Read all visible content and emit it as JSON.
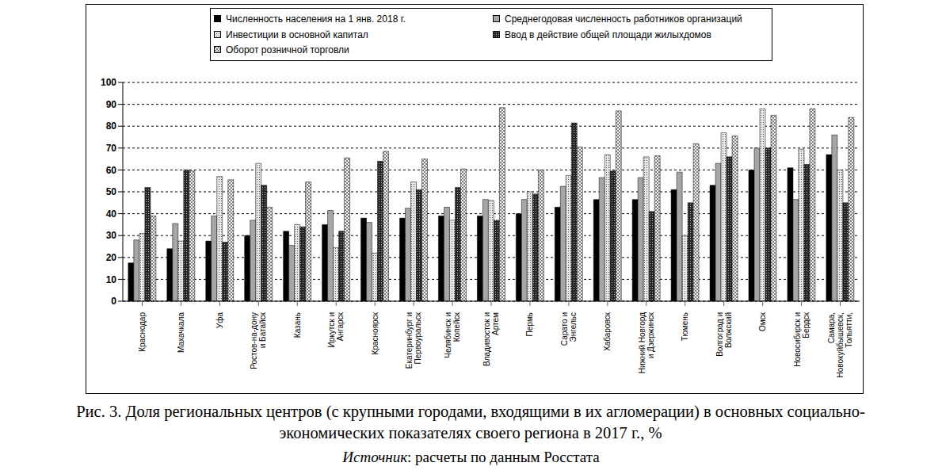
{
  "chart_data": {
    "type": "bar",
    "title": "Рис. 3. Доля региональных центров (с крупными городами, входящими в их агломерации) в основных социально-экономических показателях своего региона в 2017 г., %",
    "source": "Источник: расчеты по данным Росстата",
    "categories": [
      "Краснодар",
      "Махачкала",
      "Уфа",
      "Ростов-на-дону и Батайск",
      "Казань",
      "Иркутск и Ангарск",
      "Красноярск",
      "Екатеринбург и Первоуральск",
      "Челябинск и Копейск",
      "Владивосток и Артем",
      "Пермь",
      "Сарато и Энгельс",
      "Хабаровск",
      "Нижний Новгорд и Дзержинск",
      "Тюмень",
      "Волгоград и Волжский",
      "Омск",
      "Новосибирск и Бердск",
      "Самара, Новокуйбышевск, Тольятти,"
    ],
    "series": [
      {
        "name": "Численность населения на 1 янв. 2018 г.",
        "color": "#000000",
        "values": [
          17.5,
          24,
          27.5,
          30,
          32,
          35,
          38,
          38,
          39,
          39,
          40,
          43,
          46.5,
          46.5,
          51,
          53,
          60,
          61,
          67
        ]
      },
      {
        "name": "Среднегодовая численность работников организаций",
        "color": "#a6a6a6",
        "values": [
          28,
          35.5,
          39,
          37,
          25.5,
          41.5,
          36,
          42.5,
          43,
          46.5,
          46.5,
          52.5,
          56.5,
          56.5,
          59,
          63,
          70,
          46.5,
          76
        ]
      },
      {
        "name": "Инвестиции в основной капитал",
        "color": "#e6e6e6",
        "values": [
          31,
          27.5,
          57,
          63,
          35,
          24.5,
          22,
          54.5,
          37,
          46,
          50,
          57.5,
          67,
          66,
          30,
          77,
          88,
          69.5,
          60
        ]
      },
      {
        "name": "Ввод в действие общей площади жилыхдомов",
        "color": "#262626",
        "values": [
          52,
          60,
          27,
          53,
          34,
          32,
          64,
          51,
          52,
          37,
          49,
          81.5,
          59.5,
          41,
          45,
          66,
          70,
          62.5,
          45
        ]
      },
      {
        "name": "Оборот розничной торговли",
        "color": "#f2f2f2",
        "values": [
          39,
          59.5,
          55.5,
          43,
          54.5,
          65.5,
          68.5,
          65,
          60.5,
          88.5,
          60,
          70.5,
          87,
          66.5,
          72,
          75.5,
          85,
          88,
          84
        ]
      }
    ],
    "ylim": [
      0,
      100
    ],
    "yticks": [
      0,
      10,
      20,
      30,
      40,
      50,
      60,
      70,
      80,
      90,
      100
    ],
    "grid": true,
    "legend": "top"
  }
}
